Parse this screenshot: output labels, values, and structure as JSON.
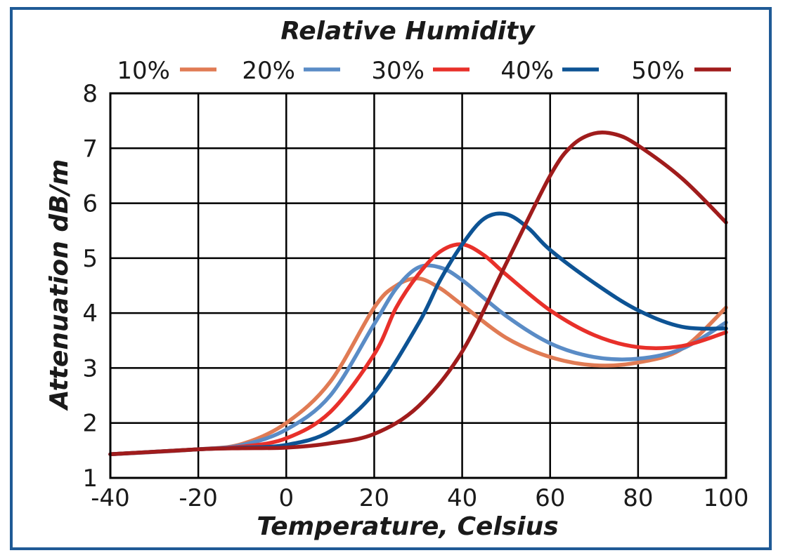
{
  "chart_data": {
    "type": "line",
    "title": "Relative Humidity",
    "xlabel": "Temperature, Celsius",
    "ylabel": "Attenuation dB/m",
    "xlim": [
      -40,
      100
    ],
    "ylim": [
      1,
      8
    ],
    "x_ticks": [
      -40,
      -20,
      0,
      20,
      40,
      60,
      80,
      100
    ],
    "x_tick_labels": [
      "-40",
      "-20",
      "0",
      "20",
      "40",
      "60",
      "80",
      "100"
    ],
    "y_ticks": [
      1,
      2,
      3,
      4,
      5,
      6,
      7,
      8
    ],
    "y_tick_labels": [
      "1",
      "2",
      "3",
      "4",
      "5",
      "6",
      "7",
      "8"
    ],
    "grid": true,
    "legend_position": "top",
    "series": [
      {
        "name": "10%",
        "color": "#e07b54",
        "points": [
          [
            -40,
            1.43
          ],
          [
            -20,
            1.52
          ],
          [
            -10,
            1.62
          ],
          [
            0,
            2.0
          ],
          [
            10,
            2.75
          ],
          [
            20,
            4.1
          ],
          [
            25,
            4.5
          ],
          [
            30,
            4.63
          ],
          [
            35,
            4.45
          ],
          [
            40,
            4.15
          ],
          [
            50,
            3.55
          ],
          [
            60,
            3.2
          ],
          [
            70,
            3.05
          ],
          [
            80,
            3.1
          ],
          [
            90,
            3.35
          ],
          [
            100,
            4.1
          ]
        ]
      },
      {
        "name": "20%",
        "color": "#5a8cc6",
        "points": [
          [
            -40,
            1.43
          ],
          [
            -20,
            1.52
          ],
          [
            -10,
            1.6
          ],
          [
            0,
            1.88
          ],
          [
            10,
            2.5
          ],
          [
            20,
            3.8
          ],
          [
            25,
            4.45
          ],
          [
            30,
            4.83
          ],
          [
            35,
            4.83
          ],
          [
            40,
            4.6
          ],
          [
            50,
            3.95
          ],
          [
            60,
            3.45
          ],
          [
            70,
            3.2
          ],
          [
            80,
            3.17
          ],
          [
            90,
            3.35
          ],
          [
            100,
            3.83
          ]
        ]
      },
      {
        "name": "30%",
        "color": "#e8302a",
        "points": [
          [
            -40,
            1.43
          ],
          [
            -20,
            1.52
          ],
          [
            -10,
            1.57
          ],
          [
            0,
            1.72
          ],
          [
            10,
            2.2
          ],
          [
            20,
            3.25
          ],
          [
            25,
            4.1
          ],
          [
            30,
            4.7
          ],
          [
            35,
            5.12
          ],
          [
            40,
            5.25
          ],
          [
            45,
            5.05
          ],
          [
            50,
            4.7
          ],
          [
            60,
            4.05
          ],
          [
            70,
            3.6
          ],
          [
            80,
            3.38
          ],
          [
            90,
            3.4
          ],
          [
            100,
            3.65
          ]
        ]
      },
      {
        "name": "40%",
        "color": "#0d5394",
        "points": [
          [
            -40,
            1.43
          ],
          [
            -20,
            1.52
          ],
          [
            -10,
            1.55
          ],
          [
            0,
            1.6
          ],
          [
            10,
            1.85
          ],
          [
            20,
            2.55
          ],
          [
            30,
            3.8
          ],
          [
            35,
            4.6
          ],
          [
            40,
            5.25
          ],
          [
            45,
            5.72
          ],
          [
            50,
            5.8
          ],
          [
            55,
            5.55
          ],
          [
            60,
            5.15
          ],
          [
            70,
            4.55
          ],
          [
            80,
            4.05
          ],
          [
            90,
            3.75
          ],
          [
            100,
            3.72
          ]
        ]
      },
      {
        "name": "50%",
        "color": "#a01c1c",
        "points": [
          [
            -40,
            1.43
          ],
          [
            -20,
            1.52
          ],
          [
            -10,
            1.54
          ],
          [
            0,
            1.55
          ],
          [
            10,
            1.63
          ],
          [
            20,
            1.8
          ],
          [
            30,
            2.3
          ],
          [
            40,
            3.3
          ],
          [
            50,
            4.9
          ],
          [
            60,
            6.5
          ],
          [
            65,
            7.05
          ],
          [
            70,
            7.27
          ],
          [
            75,
            7.25
          ],
          [
            80,
            7.05
          ],
          [
            90,
            6.45
          ],
          [
            100,
            5.65
          ]
        ]
      }
    ]
  }
}
